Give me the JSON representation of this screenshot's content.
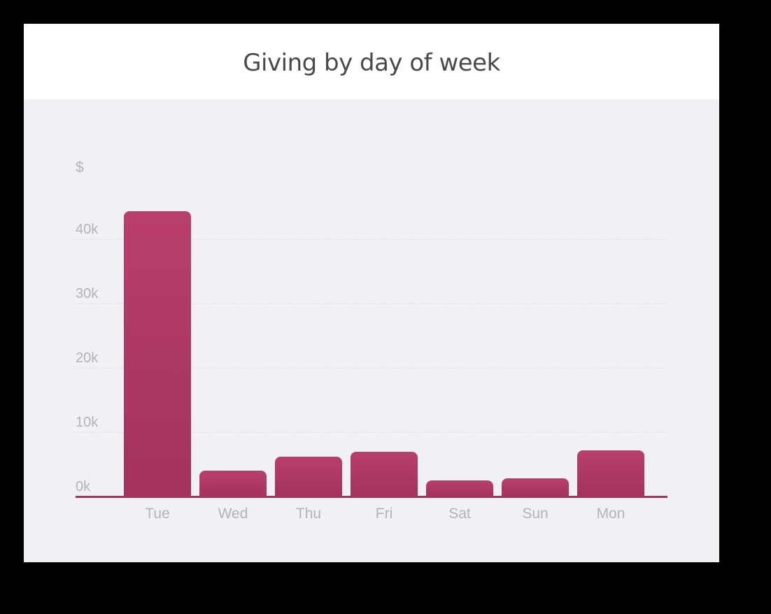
{
  "card": {
    "title": "Giving by day of week"
  },
  "chart_data": {
    "type": "bar",
    "title": "Giving by day of week",
    "xlabel": "",
    "ylabel": "$",
    "categories": [
      "Tue",
      "Wed",
      "Thu",
      "Fri",
      "Sat",
      "Sun",
      "Mon"
    ],
    "values": [
      44300,
      4000,
      6200,
      7000,
      2500,
      2800,
      7200
    ],
    "yticks": [
      0,
      10000,
      20000,
      30000,
      40000
    ],
    "ytick_labels": [
      "0k",
      "10k",
      "20k",
      "30k",
      "40k"
    ],
    "ylim": [
      0,
      45000
    ],
    "grid": true,
    "grid_style": "dashed horizontal",
    "legend": null,
    "colors": {
      "bar": "#b03a68",
      "bar_bottom": "#a3325d",
      "axis": "#a3325d",
      "tick_label": "#b3b3b8",
      "plot_background": "#f0f0f5",
      "header_background": "#ffffff"
    }
  }
}
